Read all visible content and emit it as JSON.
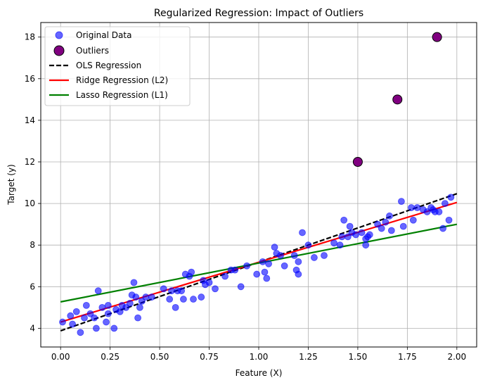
{
  "chart_data": {
    "type": "scatter",
    "title": "Regularized Regression: Impact of Outliers",
    "xlabel": "Feature (X)",
    "ylabel": "Target (y)",
    "xlim": [
      -0.1,
      2.1
    ],
    "ylim": [
      3.1,
      18.7
    ],
    "xticks": [
      0.0,
      0.25,
      0.5,
      0.75,
      1.0,
      1.25,
      1.5,
      1.75,
      2.0
    ],
    "xtick_labels": [
      "0.00",
      "0.25",
      "0.50",
      "0.75",
      "1.00",
      "1.25",
      "1.50",
      "1.75",
      "2.00"
    ],
    "yticks": [
      4,
      6,
      8,
      10,
      12,
      14,
      16,
      18
    ],
    "ytick_labels": [
      "4",
      "6",
      "8",
      "10",
      "12",
      "14",
      "16",
      "18"
    ],
    "grid": true,
    "legend_position": "top-left",
    "colors": {
      "original": "#0000ff",
      "outlier_fill": "#800080",
      "outlier_edge": "#000000",
      "ols": "#000000",
      "ridge": "#ff0000",
      "lasso": "#008000",
      "grid": "#b0b0b0"
    },
    "series": [
      {
        "name": "Original Data",
        "kind": "scatter",
        "x": [
          0.01,
          0.05,
          0.06,
          0.08,
          0.1,
          0.12,
          0.13,
          0.15,
          0.17,
          0.18,
          0.19,
          0.21,
          0.23,
          0.24,
          0.24,
          0.27,
          0.28,
          0.3,
          0.31,
          0.33,
          0.35,
          0.36,
          0.37,
          0.38,
          0.39,
          0.4,
          0.41,
          0.43,
          0.46,
          0.52,
          0.55,
          0.56,
          0.58,
          0.59,
          0.61,
          0.62,
          0.63,
          0.65,
          0.66,
          0.67,
          0.71,
          0.72,
          0.73,
          0.75,
          0.78,
          0.83,
          0.86,
          0.88,
          0.91,
          0.94,
          0.99,
          1.02,
          1.03,
          1.04,
          1.05,
          1.08,
          1.09,
          1.11,
          1.13,
          1.18,
          1.19,
          1.2,
          1.2,
          1.22,
          1.25,
          1.28,
          1.33,
          1.38,
          1.41,
          1.42,
          1.43,
          1.45,
          1.46,
          1.47,
          1.49,
          1.52,
          1.54,
          1.54,
          1.55,
          1.56,
          1.6,
          1.62,
          1.64,
          1.66,
          1.67,
          1.72,
          1.73,
          1.77,
          1.78,
          1.8,
          1.83,
          1.85,
          1.87,
          1.88,
          1.89,
          1.91,
          1.93,
          1.94,
          1.96,
          1.97
        ],
        "y": [
          4.3,
          4.6,
          4.2,
          4.8,
          3.8,
          4.5,
          5.1,
          4.7,
          4.5,
          4.0,
          5.8,
          5.0,
          4.3,
          5.1,
          4.7,
          4.0,
          4.9,
          4.8,
          5.1,
          5.0,
          5.2,
          5.6,
          6.2,
          5.5,
          4.5,
          5.0,
          5.3,
          5.5,
          5.5,
          5.9,
          5.4,
          5.8,
          5.0,
          5.8,
          5.8,
          5.4,
          6.6,
          6.5,
          6.7,
          5.4,
          5.5,
          6.3,
          6.1,
          6.2,
          5.9,
          6.5,
          6.8,
          6.8,
          6.0,
          7.0,
          6.6,
          7.2,
          6.7,
          6.4,
          7.1,
          7.9,
          7.6,
          7.5,
          7.0,
          7.5,
          6.8,
          6.6,
          7.2,
          8.6,
          8.0,
          7.4,
          7.5,
          8.1,
          8.0,
          8.4,
          9.2,
          8.4,
          8.9,
          8.6,
          8.5,
          8.6,
          8.0,
          8.3,
          8.4,
          8.5,
          9.0,
          8.8,
          9.1,
          9.4,
          8.7,
          10.1,
          8.9,
          9.8,
          9.2,
          9.8,
          9.7,
          9.6,
          9.8,
          9.7,
          9.6,
          9.6,
          8.8,
          10.0,
          9.2,
          10.3
        ]
      },
      {
        "name": "Outliers",
        "kind": "scatter",
        "x": [
          1.5,
          1.7,
          1.9
        ],
        "y": [
          12.0,
          15.0,
          18.0
        ]
      },
      {
        "name": "OLS Regression",
        "kind": "line",
        "style": "dashed",
        "x": [
          0.0,
          2.0
        ],
        "y": [
          3.88,
          10.47
        ]
      },
      {
        "name": "Ridge Regression (L2)",
        "kind": "line",
        "style": "solid",
        "x": [
          0.0,
          2.0
        ],
        "y": [
          4.3,
          10.05
        ]
      },
      {
        "name": "Lasso Regression (L1)",
        "kind": "line",
        "style": "solid",
        "x": [
          0.0,
          2.0
        ],
        "y": [
          5.27,
          9.0
        ]
      }
    ]
  }
}
